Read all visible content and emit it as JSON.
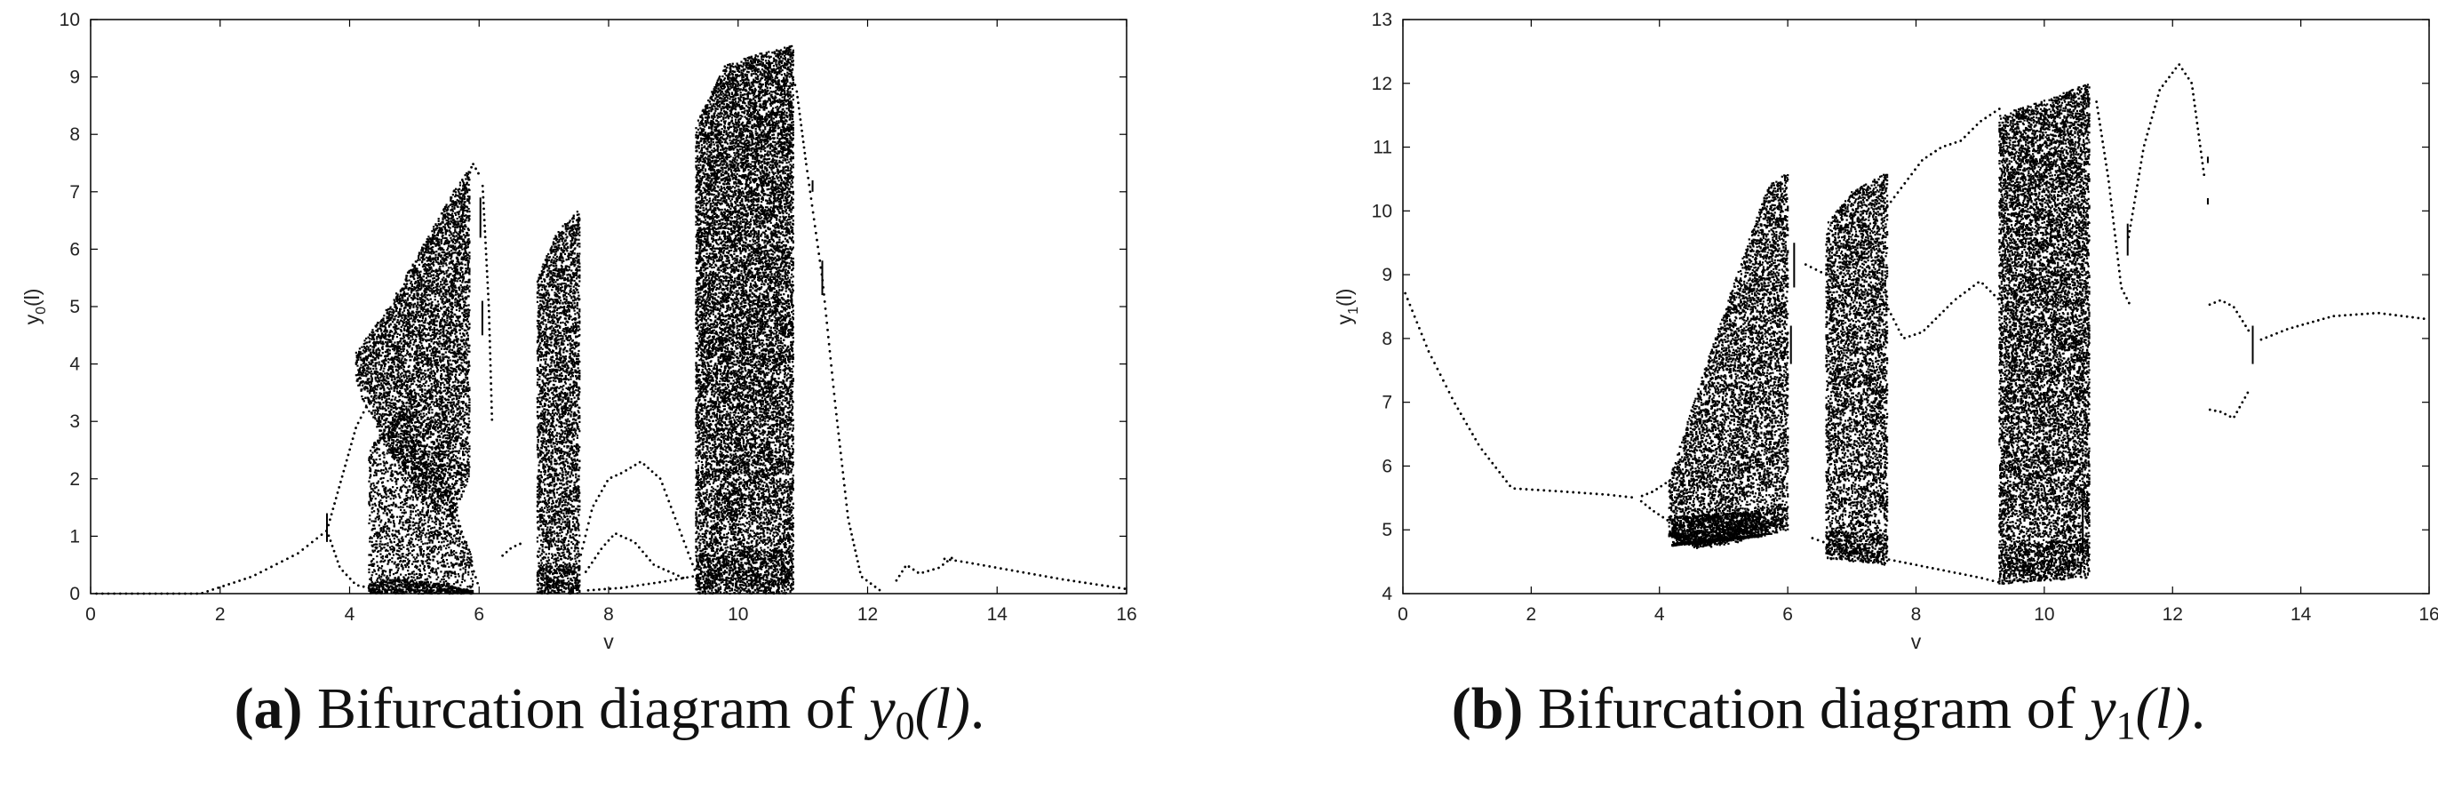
{
  "chart_data": [
    {
      "type": "scatter",
      "xlabel": "v",
      "ylabel": "y",
      "ylabel_sub": "0",
      "ylabel_arg": "(l)",
      "xlim": [
        0,
        16
      ],
      "ylim": [
        0,
        10
      ],
      "xticks": [
        0,
        2,
        4,
        6,
        8,
        10,
        12,
        14,
        16
      ],
      "yticks": [
        0,
        1,
        2,
        3,
        4,
        5,
        6,
        7,
        8,
        9,
        10
      ],
      "grid": false,
      "marker_color": "#000000",
      "curves": [
        {
          "points": [
            [
              0,
              0
            ],
            [
              1.7,
              0
            ],
            [
              2.5,
              0.3
            ],
            [
              3.2,
              0.7
            ],
            [
              3.65,
              1.1
            ]
          ]
        },
        {
          "points": [
            [
              3.65,
              1.1
            ],
            [
              3.85,
              1.9
            ],
            [
              4.1,
              2.9
            ],
            [
              4.5,
              3.8
            ],
            [
              4.9,
              3.6
            ],
            [
              5.3,
              2.6
            ],
            [
              5.6,
              1.6
            ],
            [
              5.8,
              0.8
            ],
            [
              6.0,
              0.1
            ]
          ]
        },
        {
          "points": [
            [
              3.65,
              1.1
            ],
            [
              3.85,
              0.45
            ],
            [
              4.1,
              0.15
            ],
            [
              4.5,
              0.05
            ]
          ]
        },
        {
          "points": [
            [
              5.4,
              1.8
            ],
            [
              5.6,
              5.3
            ],
            [
              5.8,
              7.1
            ],
            [
              5.9,
              7.5
            ],
            [
              6.0,
              7.3
            ]
          ]
        },
        {
          "points": [
            [
              6.05,
              7.2
            ],
            [
              6.15,
              5.0
            ],
            [
              6.2,
              3.0
            ]
          ]
        },
        {
          "points": [
            [
              6.3,
              0.6
            ],
            [
              6.5,
              0.8
            ],
            [
              6.7,
              0.9
            ]
          ]
        },
        {
          "points": [
            [
              7.5,
              0.35
            ],
            [
              7.75,
              1.5
            ],
            [
              8.0,
              2.0
            ],
            [
              8.2,
              2.1
            ],
            [
              8.5,
              2.3
            ],
            [
              8.8,
              2.0
            ],
            [
              9.1,
              1.1
            ],
            [
              9.4,
              0.2
            ]
          ]
        },
        {
          "points": [
            [
              7.6,
              0.3
            ],
            [
              7.9,
              0.8
            ],
            [
              8.1,
              1.05
            ],
            [
              8.4,
              0.9
            ],
            [
              8.7,
              0.5
            ],
            [
              9.2,
              0.25
            ]
          ]
        },
        {
          "points": [
            [
              7.6,
              0.05
            ],
            [
              8.2,
              0.1
            ],
            [
              8.8,
              0.2
            ],
            [
              9.3,
              0.3
            ]
          ]
        },
        {
          "points": [
            [
              10.7,
              9.4
            ],
            [
              10.9,
              8.8
            ],
            [
              11.05,
              7.5
            ],
            [
              11.3,
              5.5
            ],
            [
              11.5,
              3.3
            ],
            [
              11.7,
              1.3
            ],
            [
              11.9,
              0.3
            ],
            [
              12.2,
              0.05
            ]
          ]
        },
        {
          "points": [
            [
              12.4,
              0.15
            ],
            [
              12.6,
              0.5
            ],
            [
              12.8,
              0.35
            ],
            [
              13.1,
              0.45
            ],
            [
              13.3,
              0.62
            ]
          ]
        },
        {
          "points": [
            [
              13.1,
              0.62
            ],
            [
              13.5,
              0.55
            ],
            [
              14.0,
              0.45
            ],
            [
              15.0,
              0.25
            ],
            [
              16.0,
              0.08
            ]
          ]
        }
      ],
      "bands": [
        {
          "x": [
            4.1,
            5.85
          ],
          "y_lower": [
            [
              4.1,
              3.6
            ],
            [
              4.6,
              2.5
            ],
            [
              5.2,
              1.5
            ],
            [
              5.6,
              1.3
            ],
            [
              5.85,
              2.0
            ]
          ],
          "y_upper": [
            [
              4.1,
              4.2
            ],
            [
              4.6,
              5.0
            ],
            [
              5.2,
              6.2
            ],
            [
              5.6,
              7.0
            ],
            [
              5.85,
              7.4
            ]
          ],
          "density": 1.0
        },
        {
          "x": [
            4.3,
            5.9
          ],
          "y_lower": [
            [
              4.3,
              0.0
            ],
            [
              5.9,
              0.0
            ]
          ],
          "y_upper": [
            [
              4.3,
              2.5
            ],
            [
              4.8,
              3.3
            ],
            [
              5.3,
              2.4
            ],
            [
              5.9,
              0.6
            ]
          ],
          "density": 0.6
        },
        {
          "x": [
            6.9,
            7.55
          ],
          "y_lower": [
            [
              6.9,
              0.0
            ],
            [
              7.55,
              0.0
            ]
          ],
          "y_upper": [
            [
              6.9,
              5.5
            ],
            [
              7.2,
              6.3
            ],
            [
              7.55,
              6.7
            ]
          ],
          "density": 1.0
        },
        {
          "x": [
            9.35,
            10.85
          ],
          "y_lower": [
            [
              9.35,
              0.0
            ],
            [
              10.85,
              0.0
            ]
          ],
          "y_upper": [
            [
              9.35,
              8.2
            ],
            [
              9.8,
              9.2
            ],
            [
              10.3,
              9.4
            ],
            [
              10.85,
              9.55
            ]
          ],
          "density": 1.2
        }
      ],
      "segments": [
        {
          "x": 3.65,
          "y": [
            0.9,
            1.4
          ]
        },
        {
          "x": 6.02,
          "y": [
            6.2,
            6.9
          ]
        },
        {
          "x": 6.05,
          "y": [
            4.5,
            5.1
          ]
        },
        {
          "x": 11.3,
          "y": [
            5.2,
            5.8
          ]
        },
        {
          "x": 11.15,
          "y": [
            7.0,
            7.2
          ]
        }
      ]
    },
    {
      "type": "scatter",
      "xlabel": "v",
      "ylabel": "y",
      "ylabel_sub": "1",
      "ylabel_arg": "(l)",
      "xlim": [
        0,
        16
      ],
      "ylim": [
        4,
        13
      ],
      "xticks": [
        0,
        2,
        4,
        6,
        8,
        10,
        12,
        14,
        16
      ],
      "yticks": [
        4,
        5,
        6,
        7,
        8,
        9,
        10,
        11,
        12,
        13
      ],
      "grid": false,
      "marker_color": "#000000",
      "curves": [
        {
          "points": [
            [
              0,
              8.8
            ],
            [
              0.4,
              7.8
            ],
            [
              0.8,
              7.0
            ],
            [
              1.2,
              6.3
            ],
            [
              1.7,
              5.65
            ],
            [
              2.5,
              5.6
            ],
            [
              3.2,
              5.55
            ],
            [
              3.65,
              5.5
            ]
          ]
        },
        {
          "points": [
            [
              3.65,
              5.5
            ],
            [
              3.9,
              5.6
            ],
            [
              4.2,
              5.8
            ]
          ]
        },
        {
          "points": [
            [
              3.65,
              5.5
            ],
            [
              3.9,
              5.3
            ],
            [
              4.2,
              5.1
            ]
          ]
        },
        {
          "points": [
            [
              6.3,
              4.9
            ],
            [
              7.0,
              4.65
            ],
            [
              8.0,
              4.45
            ],
            [
              9.0,
              4.25
            ],
            [
              9.4,
              4.15
            ]
          ]
        },
        {
          "points": [
            [
              6.2,
              9.2
            ],
            [
              6.6,
              9.0
            ],
            [
              7.0,
              8.8
            ],
            [
              7.5,
              8.6
            ],
            [
              7.8,
              8.0
            ],
            [
              8.1,
              8.1
            ],
            [
              8.6,
              8.6
            ],
            [
              9.0,
              8.9
            ],
            [
              9.4,
              8.5
            ],
            [
              9.8,
              8.25
            ],
            [
              10.2,
              8.1
            ]
          ]
        },
        {
          "points": [
            [
              7.5,
              10.0
            ],
            [
              7.8,
              10.4
            ],
            [
              8.1,
              10.8
            ],
            [
              8.4,
              11.0
            ],
            [
              8.7,
              11.1
            ],
            [
              9.0,
              11.4
            ],
            [
              9.3,
              11.6
            ]
          ]
        },
        {
          "points": [
            [
              10.8,
              11.8
            ],
            [
              11.0,
              10.5
            ],
            [
              11.2,
              8.8
            ],
            [
              11.35,
              8.5
            ]
          ]
        },
        {
          "points": [
            [
              11.3,
              9.5
            ],
            [
              11.55,
              11.0
            ],
            [
              11.8,
              11.9
            ],
            [
              12.1,
              12.3
            ],
            [
              12.3,
              12.0
            ],
            [
              12.5,
              10.5
            ]
          ]
        },
        {
          "points": [
            [
              12.5,
              6.9
            ],
            [
              12.75,
              6.85
            ],
            [
              12.95,
              6.75
            ],
            [
              13.2,
              7.2
            ]
          ]
        },
        {
          "points": [
            [
              12.5,
              8.5
            ],
            [
              12.75,
              8.6
            ],
            [
              12.95,
              8.5
            ],
            [
              13.2,
              8.1
            ]
          ]
        },
        {
          "points": [
            [
              13.3,
              7.95
            ],
            [
              13.8,
              8.15
            ],
            [
              14.5,
              8.35
            ],
            [
              15.2,
              8.4
            ],
            [
              16.0,
              8.3
            ]
          ]
        }
      ],
      "bands": [
        {
          "x": [
            4.15,
            6.0
          ],
          "y_lower": [
            [
              4.15,
              4.9
            ],
            [
              4.6,
              4.7
            ],
            [
              5.2,
              4.8
            ],
            [
              6.0,
              5.0
            ]
          ],
          "y_upper": [
            [
              4.15,
              5.8
            ],
            [
              4.6,
              7.2
            ],
            [
              5.2,
              9.0
            ],
            [
              5.7,
              10.4
            ],
            [
              6.0,
              10.6
            ]
          ],
          "density": 1.0
        },
        {
          "x": [
            4.2,
            5.6
          ],
          "y_lower": [
            [
              4.2,
              4.75
            ],
            [
              5.6,
              4.9
            ]
          ],
          "y_upper": [
            [
              4.2,
              5.2
            ],
            [
              5.6,
              5.3
            ]
          ],
          "density": 1.5
        },
        {
          "x": [
            6.6,
            7.55
          ],
          "y_lower": [
            [
              6.6,
              4.55
            ],
            [
              7.55,
              4.45
            ]
          ],
          "y_upper": [
            [
              6.6,
              9.8
            ],
            [
              7.0,
              10.3
            ],
            [
              7.55,
              10.6
            ]
          ],
          "density": 1.0
        },
        {
          "x": [
            9.3,
            10.7
          ],
          "y_lower": [
            [
              9.3,
              4.15
            ],
            [
              10.7,
              4.25
            ]
          ],
          "y_upper": [
            [
              9.3,
              11.5
            ],
            [
              9.9,
              11.7
            ],
            [
              10.7,
              12.0
            ]
          ],
          "density": 1.2
        }
      ],
      "segments": [
        {
          "x": 6.05,
          "y": [
            7.6,
            8.2
          ]
        },
        {
          "x": 6.1,
          "y": [
            8.8,
            9.5
          ]
        },
        {
          "x": 11.3,
          "y": [
            9.3,
            9.8
          ]
        },
        {
          "x": 12.55,
          "y": [
            10.1,
            10.2
          ]
        },
        {
          "x": 12.55,
          "y": [
            10.75,
            10.85
          ]
        },
        {
          "x": 13.25,
          "y": [
            7.6,
            8.2
          ]
        },
        {
          "x": 10.6,
          "y": [
            4.6,
            5.4
          ]
        }
      ]
    }
  ],
  "captions": [
    {
      "tag": "(a)",
      "text": "Bifurcation diagram of",
      "var": "y",
      "sub": "0",
      "arg": "(l)",
      "end": "."
    },
    {
      "tag": "(b)",
      "text": "Bifurcation diagram of",
      "var": "y",
      "sub": "1",
      "arg": "(l)",
      "end": "."
    }
  ]
}
